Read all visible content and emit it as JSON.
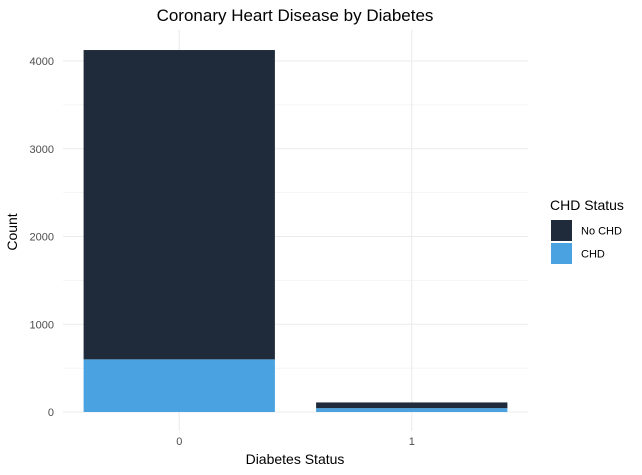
{
  "chart_data": {
    "type": "bar",
    "stacked": true,
    "title": "Coronary Heart Disease by Diabetes",
    "xlabel": "Diabetes Status",
    "ylabel": "Count",
    "categories": [
      "0",
      "1"
    ],
    "series": [
      {
        "name": "CHD",
        "values": [
          600,
          44
        ],
        "color": "#4aa3e0"
      },
      {
        "name": "No CHD",
        "values": [
          3525,
          65
        ],
        "color": "#1f2b3b"
      }
    ],
    "ylim": [
      0,
      4125
    ],
    "yticks": [
      0,
      1000,
      2000,
      3000,
      4000
    ],
    "y_tick_labels": [
      "0",
      "1000",
      "2000",
      "3000",
      "4000"
    ],
    "grid": true,
    "legend": {
      "title": "CHD Status",
      "position": "right",
      "entries": [
        {
          "label": "No CHD",
          "color": "#1f2b3b"
        },
        {
          "label": "CHD",
          "color": "#4aa3e0"
        }
      ]
    }
  }
}
